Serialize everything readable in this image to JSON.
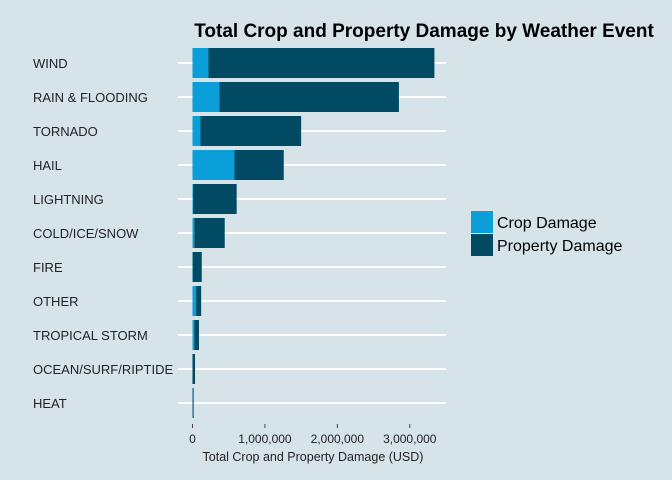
{
  "chart_data": {
    "type": "bar",
    "orientation": "horizontal",
    "stacked": true,
    "title": "Total Crop and Property Damage by Weather Event",
    "xlabel": "Total Crop and Property Damage (USD)",
    "ylabel": "",
    "xlim": [
      -200000,
      3500000
    ],
    "xticks": [
      0,
      1000000,
      2000000,
      3000000
    ],
    "xtick_labels": [
      "0",
      "1,000,000",
      "2,000,000",
      "3,000,000"
    ],
    "grid": "horizontal only",
    "legend_position": "right",
    "categories": [
      "WIND",
      "RAIN & FLOODING",
      "TORNADO",
      "HAIL",
      "LIGHTNING",
      "COLD/ICE/SNOW",
      "FIRE",
      "OTHER",
      "TROPICAL STORM",
      "OCEAN/SURF/RIPTIDE",
      "HEAT"
    ],
    "series": [
      {
        "name": "Crop Damage",
        "color": "#0a9fd8",
        "values": [
          220000,
          370000,
          110000,
          580000,
          10000,
          25000,
          3000,
          50000,
          25000,
          0,
          2000
        ]
      },
      {
        "name": "Property Damage",
        "color": "#004b63",
        "values": [
          3120000,
          2480000,
          1390000,
          680000,
          600000,
          420000,
          125000,
          70000,
          65000,
          35000,
          3000
        ]
      }
    ]
  }
}
